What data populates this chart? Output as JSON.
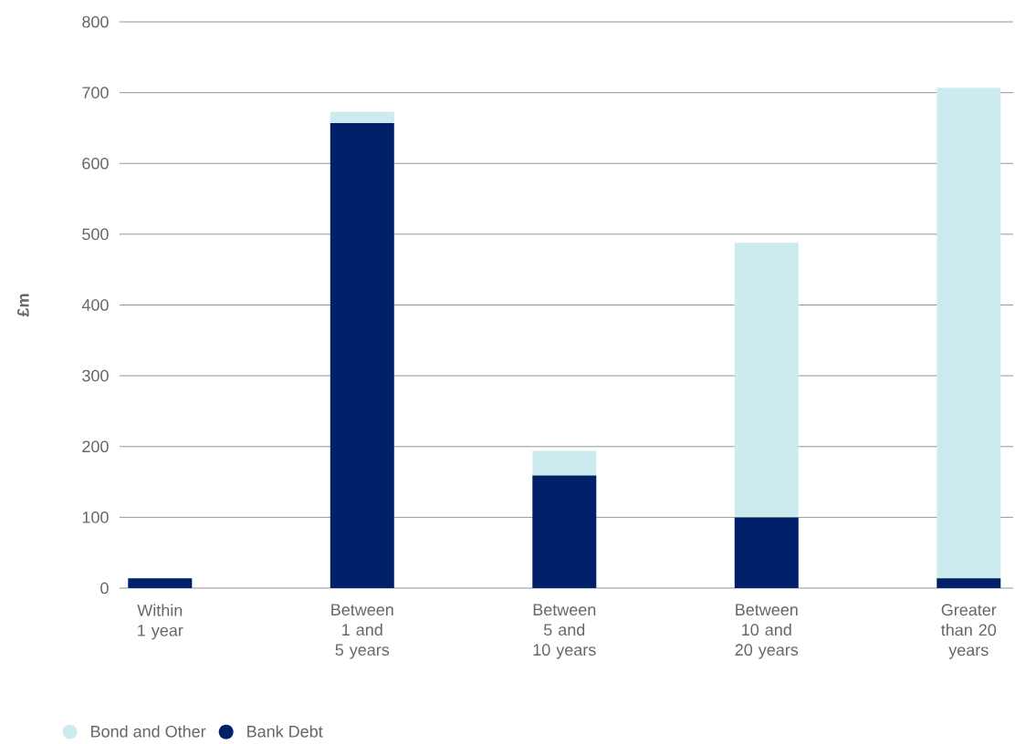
{
  "chart_data": {
    "type": "bar",
    "stacked": true,
    "ylabel": "£m",
    "categories": [
      "Within 1 year",
      "Between 1 and 5 years",
      "Between 5 and 10 years",
      "Between 10 and 20 years",
      "Greater than 20 years"
    ],
    "series": [
      {
        "name": "Bank Debt",
        "color": "#00216a",
        "values": [
          14,
          657,
          159,
          100,
          14
        ]
      },
      {
        "name": "Bond and Other",
        "color": "#cdebee",
        "values": [
          null,
          16,
          35,
          388,
          693
        ]
      }
    ],
    "ylim": [
      0,
      800
    ],
    "yticks": [
      0,
      100,
      200,
      300,
      400,
      500,
      600,
      700,
      800
    ],
    "grid": "y",
    "legend": "bottom left"
  }
}
